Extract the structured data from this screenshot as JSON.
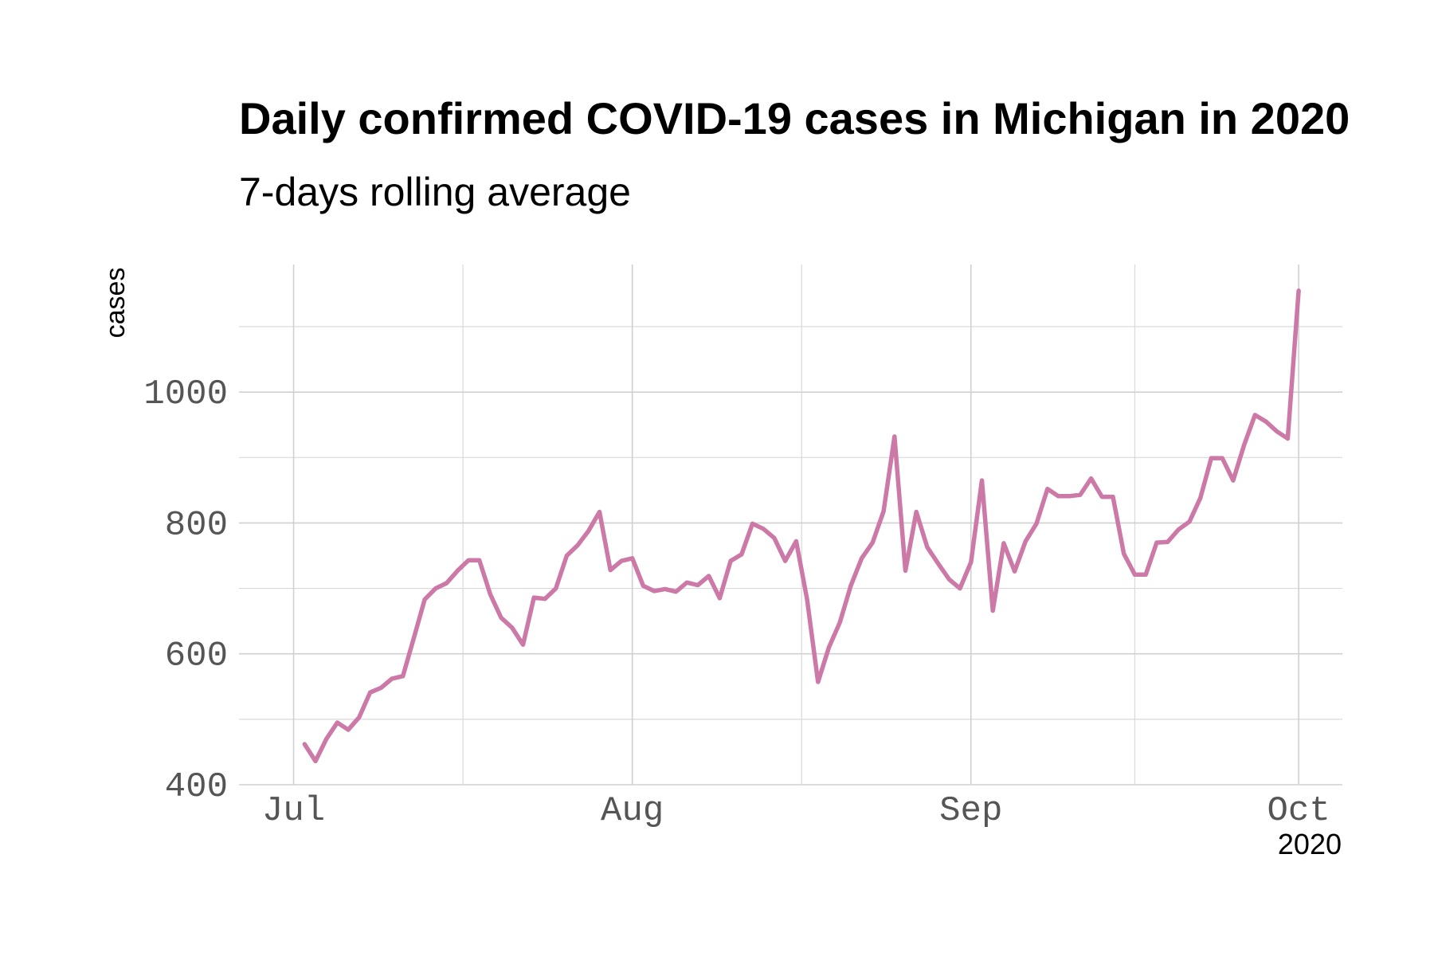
{
  "chart_data": {
    "type": "line",
    "title": "Daily confirmed COVID-19 cases in Michigan in 2020",
    "subtitle": "7-days rolling average",
    "xlabel": "",
    "ylabel": "cases",
    "caption_year": "2020",
    "x_ticks": [
      {
        "date": "2020-07-01",
        "label": "Jul"
      },
      {
        "date": "2020-08-01",
        "label": "Aug"
      },
      {
        "date": "2020-09-01",
        "label": "Sep"
      },
      {
        "date": "2020-10-01",
        "label": "Oct"
      }
    ],
    "y_ticks": [
      400,
      600,
      800,
      1000
    ],
    "xlim": [
      "2020-06-26",
      "2020-10-05"
    ],
    "ylim": [
      400,
      1195
    ],
    "grid": true,
    "line_color": "#cc79a7",
    "series": [
      {
        "x": [
          "2020-07-02",
          "2020-07-03",
          "2020-07-04",
          "2020-07-05",
          "2020-07-06",
          "2020-07-07",
          "2020-07-08",
          "2020-07-09",
          "2020-07-10",
          "2020-07-11",
          "2020-07-12",
          "2020-07-13",
          "2020-07-14",
          "2020-07-15",
          "2020-07-16",
          "2020-07-17",
          "2020-07-18",
          "2020-07-19",
          "2020-07-20",
          "2020-07-21",
          "2020-07-22",
          "2020-07-23",
          "2020-07-24",
          "2020-07-25",
          "2020-07-26",
          "2020-07-27",
          "2020-07-28",
          "2020-07-29",
          "2020-07-30",
          "2020-07-31",
          "2020-08-01",
          "2020-08-02",
          "2020-08-03",
          "2020-08-04",
          "2020-08-05",
          "2020-08-06",
          "2020-08-07",
          "2020-08-08",
          "2020-08-09",
          "2020-08-10",
          "2020-08-11",
          "2020-08-12",
          "2020-08-13",
          "2020-08-14",
          "2020-08-15",
          "2020-08-16",
          "2020-08-17",
          "2020-08-18",
          "2020-08-19",
          "2020-08-20",
          "2020-08-21",
          "2020-08-22",
          "2020-08-23",
          "2020-08-24",
          "2020-08-25",
          "2020-08-26",
          "2020-08-27",
          "2020-08-28",
          "2020-08-29",
          "2020-08-30",
          "2020-08-31",
          "2020-09-01",
          "2020-09-02",
          "2020-09-03",
          "2020-09-04",
          "2020-09-05",
          "2020-09-06",
          "2020-09-07",
          "2020-09-08",
          "2020-09-09",
          "2020-09-10",
          "2020-09-11",
          "2020-09-12",
          "2020-09-13",
          "2020-09-14",
          "2020-09-15",
          "2020-09-16",
          "2020-09-17",
          "2020-09-18",
          "2020-09-19",
          "2020-09-20",
          "2020-09-21",
          "2020-09-22",
          "2020-09-23",
          "2020-09-24",
          "2020-09-25",
          "2020-09-26",
          "2020-09-27",
          "2020-09-28",
          "2020-09-29",
          "2020-09-30",
          "2020-10-01"
        ],
        "values": [
          462,
          436,
          470,
          495,
          484,
          503,
          541,
          548,
          562,
          566,
          624,
          683,
          700,
          708,
          727,
          743,
          743,
          691,
          655,
          640,
          614,
          686,
          684,
          700,
          750,
          766,
          788,
          817,
          728,
          742,
          746,
          704,
          696,
          699,
          695,
          709,
          705,
          719,
          685,
          742,
          752,
          799,
          791,
          777,
          742,
          772,
          683,
          557,
          610,
          648,
          704,
          746,
          770,
          818,
          932,
          727,
          817,
          763,
          738,
          714,
          700,
          740,
          865,
          666,
          769,
          726,
          772,
          799,
          852,
          841,
          841,
          843,
          868,
          840,
          840,
          753,
          721,
          721,
          770,
          771,
          790,
          802,
          838,
          899,
          899,
          865,
          919,
          965,
          955,
          940,
          929,
          1155
        ]
      }
    ]
  }
}
